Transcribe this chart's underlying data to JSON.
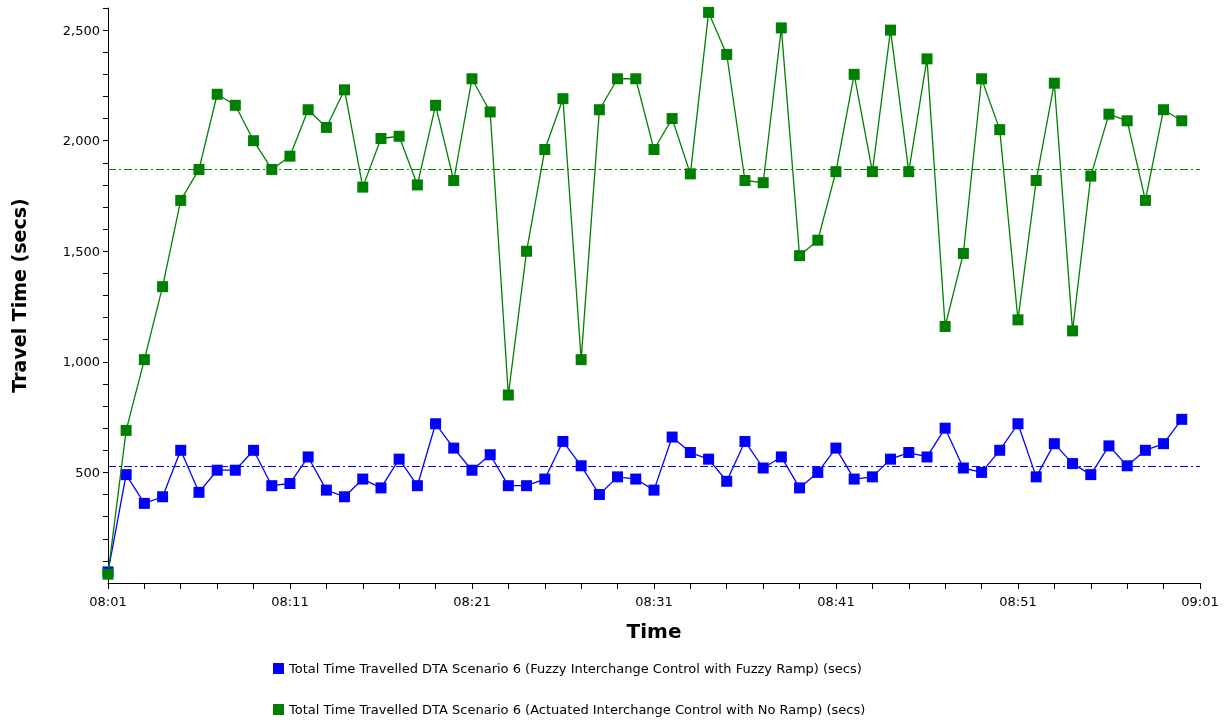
{
  "chart_data": {
    "type": "line",
    "xlabel": "Time",
    "ylabel": "Travel Time (secs)",
    "x": [
      8.0167,
      8.0333,
      8.05,
      8.0667,
      8.0833,
      8.1,
      8.1167,
      8.1333,
      8.15,
      8.1667,
      8.1833,
      8.2,
      8.2167,
      8.2333,
      8.25,
      8.2667,
      8.2833,
      8.3,
      8.3167,
      8.3333,
      8.35,
      8.3667,
      8.3833,
      8.4,
      8.4167,
      8.4333,
      8.45,
      8.4667,
      8.4833,
      8.5,
      8.5167,
      8.5333,
      8.55,
      8.5667,
      8.5833,
      8.6,
      8.6167,
      8.6333,
      8.65,
      8.6667,
      8.6833,
      8.7,
      8.7167,
      8.7333,
      8.75,
      8.7667,
      8.7833,
      8.8,
      8.8167,
      8.8333,
      8.85,
      8.8667,
      8.8833,
      8.9,
      8.9167,
      8.9333,
      8.95,
      8.9667,
      8.9833,
      9
    ],
    "series": [
      {
        "name": "Total Time Travelled DTA Scenario 6 (Fuzzy Interchange Control with Fuzzy Ramp) (secs)",
        "color": "#0000ff",
        "values": [
          50,
          490,
          360,
          390,
          600,
          410,
          510,
          510,
          600,
          440,
          450,
          570,
          420,
          390,
          470,
          430,
          560,
          440,
          720,
          610,
          510,
          580,
          440,
          440,
          470,
          640,
          530,
          400,
          480,
          470,
          420,
          660,
          590,
          560,
          460,
          640,
          520,
          570,
          430,
          500,
          610,
          470,
          480,
          560,
          590,
          570,
          700,
          520,
          500,
          600,
          720,
          480,
          630,
          540,
          490,
          620,
          530,
          600,
          630,
          740
        ]
      },
      {
        "name": "Total Time Travelled DTA Scenario 6 (Actuated Interchange Control with No Ramp) (secs)",
        "color": "#008000",
        "values": [
          40,
          690,
          1010,
          1340,
          1730,
          1870,
          2210,
          2160,
          2000,
          1870,
          1930,
          2140,
          2060,
          2230,
          1790,
          2010,
          2020,
          1800,
          2160,
          1820,
          2280,
          2130,
          850,
          1500,
          1960,
          2190,
          1010,
          2140,
          2280,
          2280,
          1960,
          2100,
          1850,
          2580,
          2390,
          1820,
          1810,
          2510,
          1480,
          1550,
          1860,
          2300,
          1860,
          2500,
          1860,
          2370,
          1160,
          1490,
          2280,
          2050,
          1190,
          1820,
          2260,
          1140,
          1840,
          2120,
          2090,
          1730,
          2140,
          2090
        ]
      }
    ],
    "ref_lines": [
      {
        "axis": "y",
        "value": 530,
        "color": "#0000ff",
        "line_style": "dashed"
      },
      {
        "axis": "y",
        "value": 1870,
        "color": "#008000",
        "line_style": "dashed"
      }
    ],
    "xlim": [
      8.0167,
      9.0167
    ],
    "xticks": [
      {
        "value": 8.0167,
        "label": "08:01"
      },
      {
        "value": 8.05,
        "label": null
      },
      {
        "value": 8.0833,
        "label": null
      },
      {
        "value": 8.1167,
        "label": null
      },
      {
        "value": 8.15,
        "label": null
      },
      {
        "value": 8.1833,
        "label": "08:11"
      },
      {
        "value": 8.2167,
        "label": null
      },
      {
        "value": 8.25,
        "label": null
      },
      {
        "value": 8.2833,
        "label": null
      },
      {
        "value": 8.3167,
        "label": null
      },
      {
        "value": 8.35,
        "label": "08:21"
      },
      {
        "value": 8.3833,
        "label": null
      },
      {
        "value": 8.4167,
        "label": null
      },
      {
        "value": 8.45,
        "label": null
      },
      {
        "value": 8.4833,
        "label": null
      },
      {
        "value": 8.5167,
        "label": "08:31"
      },
      {
        "value": 8.55,
        "label": null
      },
      {
        "value": 8.5833,
        "label": null
      },
      {
        "value": 8.6167,
        "label": null
      },
      {
        "value": 8.65,
        "label": null
      },
      {
        "value": 8.6833,
        "label": "08:41"
      },
      {
        "value": 8.7167,
        "label": null
      },
      {
        "value": 8.75,
        "label": null
      },
      {
        "value": 8.7833,
        "label": null
      },
      {
        "value": 8.8167,
        "label": null
      },
      {
        "value": 8.85,
        "label": "08:51"
      },
      {
        "value": 8.8833,
        "label": null
      },
      {
        "value": 8.9167,
        "label": null
      },
      {
        "value": 8.95,
        "label": null
      },
      {
        "value": 8.9833,
        "label": null
      },
      {
        "value": 9.0167,
        "label": "09:01"
      }
    ],
    "ylim": [
      0,
      2600
    ],
    "yticks": [
      {
        "value": 100,
        "label": null
      },
      {
        "value": 200,
        "label": null
      },
      {
        "value": 300,
        "label": null
      },
      {
        "value": 400,
        "label": null
      },
      500,
      {
        "value": 600,
        "label": null
      },
      {
        "value": 700,
        "label": null
      },
      {
        "value": 800,
        "label": null
      },
      {
        "value": 900,
        "label": null
      },
      {
        "value": 1000,
        "label": "1,000"
      },
      {
        "value": 1100,
        "label": null
      },
      {
        "value": 1200,
        "label": null
      },
      {
        "value": 1300,
        "label": null
      },
      {
        "value": 1400,
        "label": null
      },
      {
        "value": 1500,
        "label": "1,500"
      },
      {
        "value": 1600,
        "label": null
      },
      {
        "value": 1700,
        "label": null
      },
      {
        "value": 1800,
        "label": null
      },
      {
        "value": 1900,
        "label": null
      },
      {
        "value": 2000,
        "label": "2,000"
      },
      {
        "value": 2100,
        "label": null
      },
      {
        "value": 2200,
        "label": null
      },
      {
        "value": 2300,
        "label": null
      },
      {
        "value": 2400,
        "label": null
      },
      {
        "value": 2500,
        "label": "2,500"
      },
      {
        "value": 2600,
        "label": null
      }
    ],
    "grid": false,
    "legend": "bottom",
    "marker": "square",
    "line_style": "solid"
  }
}
